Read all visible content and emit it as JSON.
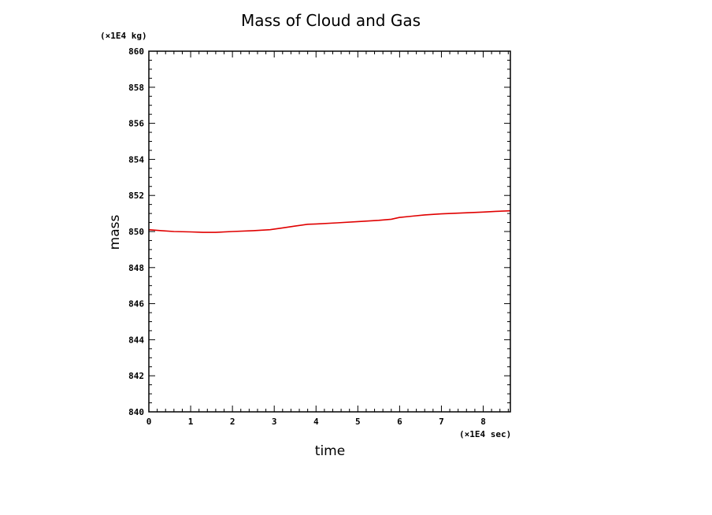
{
  "chart_data": {
    "type": "line",
    "title": "Mass of Cloud and Gas",
    "xlabel": "time",
    "ylabel": "mass",
    "x_unit": "(×1E4 sec)",
    "y_unit": "(×1E4 kg)",
    "xlim": [
      0,
      8.65
    ],
    "ylim": [
      840,
      860
    ],
    "x_ticks": [
      "0",
      "1",
      "2",
      "3",
      "4",
      "5",
      "6",
      "7",
      "8"
    ],
    "y_ticks": [
      "840",
      "842",
      "844",
      "846",
      "848",
      "850",
      "852",
      "854",
      "856",
      "858",
      "860"
    ],
    "grid": false,
    "series": [
      {
        "color": "#e00000",
        "x": [
          0,
          0.3,
          0.6,
          1.0,
          1.3,
          1.6,
          2.0,
          2.5,
          2.9,
          3.2,
          3.5,
          3.8,
          4.0,
          4.5,
          5.0,
          5.5,
          5.8,
          6.0,
          6.3,
          6.6,
          7.0,
          7.5,
          8.0,
          8.3,
          8.65
        ],
        "y": [
          850.1,
          850.05,
          850.0,
          849.98,
          849.95,
          849.95,
          850.0,
          850.05,
          850.1,
          850.2,
          850.3,
          850.4,
          850.42,
          850.48,
          850.55,
          850.62,
          850.68,
          850.78,
          850.85,
          850.92,
          850.98,
          851.03,
          851.08,
          851.12,
          851.15
        ]
      }
    ]
  }
}
